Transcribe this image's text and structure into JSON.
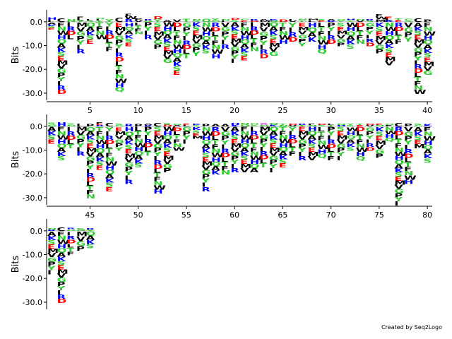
{
  "credit": "Created by Seq2Logo",
  "chart_data": {
    "type": "sequence-logo",
    "ylabel": "Bits",
    "ylim": [
      -33,
      5
    ],
    "yticks": [
      {
        "value": 0,
        "label": "0.0"
      },
      {
        "value": -10,
        "label": "-10.0"
      },
      {
        "value": -20,
        "label": "-20.0"
      },
      {
        "value": -30,
        "label": "-30.0"
      }
    ],
    "grid": false,
    "residue_colors": {
      "hydrophobic": "#000000",
      "polar": "#33cc33",
      "acidic": "#ff0000",
      "basic": "#0000ff",
      "other": "#cc00cc"
    },
    "rows": [
      {
        "start": 1,
        "end": 40,
        "xticks": [
          5,
          10,
          15,
          20,
          25,
          30,
          35,
          40
        ],
        "positions": [
          {
            "top": "HI",
            "pos": 1.8,
            "neg": -3
          },
          {
            "top": "C",
            "pos": 1.6,
            "neg": -30
          },
          {
            "top": "N",
            "pos": 1.2,
            "neg": -7
          },
          {
            "top": "FLY",
            "pos": 2.2,
            "neg": -13
          },
          {
            "top": "LS",
            "pos": 0.8,
            "neg": -9
          },
          {
            "top": "QIT",
            "pos": 0.9,
            "neg": -7
          },
          {
            "top": "Y",
            "pos": 1.1,
            "neg": -12
          },
          {
            "top": "C",
            "pos": 1.8,
            "neg": -29
          },
          {
            "top": "FWR",
            "pos": 3.3,
            "neg": -10
          },
          {
            "top": "PV",
            "pos": 1.4,
            "neg": -5
          },
          {
            "top": "RG",
            "pos": 1.2,
            "neg": -7
          },
          {
            "top": "DY",
            "pos": 2.2,
            "neg": -11
          },
          {
            "top": "A",
            "pos": 0.8,
            "neg": -17
          },
          {
            "top": "V",
            "pos": 1.0,
            "neg": -22
          },
          {
            "top": "T",
            "pos": 1.4,
            "neg": -15
          },
          {
            "top": "NS",
            "pos": 1.2,
            "neg": -14
          },
          {
            "top": "Q",
            "pos": 1.3,
            "neg": -13
          },
          {
            "top": "YG",
            "pos": 1.4,
            "neg": -15
          },
          {
            "top": "NI",
            "pos": 1.2,
            "neg": -11
          },
          {
            "top": "DS",
            "pos": 1.6,
            "neg": -17
          },
          {
            "top": "GE",
            "pos": 1.3,
            "neg": -16
          },
          {
            "top": "RD",
            "pos": 1.2,
            "neg": -12
          },
          {
            "top": "AM",
            "pos": 1.2,
            "neg": -15
          },
          {
            "top": "KN",
            "pos": 1.0,
            "neg": -14
          },
          {
            "top": "D",
            "pos": 0.9,
            "neg": -9
          },
          {
            "top": "IV",
            "pos": 1.0,
            "neg": -8
          },
          {
            "top": "NT",
            "pos": 1.3,
            "neg": -10
          },
          {
            "top": "ML",
            "pos": 1.3,
            "neg": -8
          },
          {
            "top": "SE",
            "pos": 1.1,
            "neg": -13
          },
          {
            "top": "AR",
            "pos": 0.9,
            "neg": -9
          },
          {
            "top": "QY",
            "pos": 1.0,
            "neg": -10
          },
          {
            "top": "HT",
            "pos": 1.3,
            "neg": -11
          },
          {
            "top": "NV",
            "pos": 1.0,
            "neg": -9
          },
          {
            "top": "RS",
            "pos": 1.1,
            "neg": -10
          },
          {
            "top": "FWM",
            "pos": 3.2,
            "neg": -13
          },
          {
            "top": "ELK",
            "pos": 2.2,
            "neg": -18
          },
          {
            "top": "TE",
            "pos": 1.5,
            "neg": -9
          },
          {
            "top": "GS",
            "pos": 1.3,
            "neg": -8
          },
          {
            "top": "C",
            "pos": 1.6,
            "neg": -30
          },
          {
            "top": "P",
            "pos": 1.0,
            "neg": -22
          }
        ]
      },
      {
        "start": 41,
        "end": 80,
        "xticks": [
          45,
          50,
          55,
          60,
          65,
          70,
          75,
          80
        ],
        "positions": [
          {
            "top": "SG",
            "pos": 1.6,
            "neg": -7
          },
          {
            "top": "H",
            "pos": 1.7,
            "neg": -14
          },
          {
            "top": "SN",
            "pos": 1.3,
            "neg": -9
          },
          {
            "top": "IL",
            "pos": 1.0,
            "neg": -12
          },
          {
            "top": "P",
            "pos": 1.0,
            "neg": -30
          },
          {
            "top": "FER",
            "pos": 1.8,
            "neg": -18
          },
          {
            "top": "C",
            "pos": 1.6,
            "neg": -27
          },
          {
            "top": "SG",
            "pos": 1.2,
            "neg": -10
          },
          {
            "top": "R",
            "pos": 1.0,
            "neg": -24
          },
          {
            "top": "P",
            "pos": 1.0,
            "neg": -17
          },
          {
            "top": "AR",
            "pos": 1.2,
            "neg": -12
          },
          {
            "top": "C",
            "pos": 1.6,
            "neg": -28
          },
          {
            "top": "SD",
            "pos": 1.4,
            "neg": -19
          },
          {
            "top": "GA",
            "pos": 1.2,
            "neg": -10
          },
          {
            "top": "EL",
            "pos": 1.0,
            "neg": -7
          },
          {
            "top": "KS",
            "pos": 1.0,
            "neg": -5
          },
          {
            "top": "P",
            "pos": 1.0,
            "neg": -27
          },
          {
            "top": "A",
            "pos": 1.0,
            "neg": -20
          },
          {
            "top": "A",
            "pos": 1.0,
            "neg": -20
          },
          {
            "top": "HK",
            "pos": 1.5,
            "neg": -19
          },
          {
            "top": "NQ",
            "pos": 1.4,
            "neg": -19
          },
          {
            "top": "NS",
            "pos": 1.3,
            "neg": -19
          },
          {
            "top": "XN",
            "pos": 1.3,
            "neg": -17
          },
          {
            "top": "QK",
            "pos": 1.4,
            "neg": -19
          },
          {
            "top": "TN",
            "pos": 1.2,
            "neg": -17
          },
          {
            "top": "DV",
            "pos": 0.9,
            "neg": -12
          },
          {
            "top": "RT",
            "pos": 1.0,
            "neg": -14
          },
          {
            "top": "FN",
            "pos": 1.0,
            "neg": -14
          },
          {
            "top": "DS",
            "pos": 1.1,
            "neg": -13
          },
          {
            "top": "LT",
            "pos": 1.0,
            "neg": -14
          },
          {
            "top": "NH",
            "pos": 1.0,
            "neg": -14
          },
          {
            "top": "YS",
            "pos": 0.9,
            "neg": -10
          },
          {
            "top": "TE",
            "pos": 1.0,
            "neg": -14
          },
          {
            "top": "DV",
            "pos": 1.0,
            "neg": -10
          },
          {
            "top": "EN",
            "pos": 1.0,
            "neg": -13
          },
          {
            "top": "QF",
            "pos": 1.2,
            "neg": -6
          },
          {
            "top": "C",
            "pos": 1.6,
            "neg": -33
          },
          {
            "top": "P",
            "pos": 1.2,
            "neg": -24
          },
          {
            "top": "SG",
            "pos": 1.2,
            "neg": -9
          },
          {
            "top": "K",
            "pos": 1.0,
            "neg": -15
          }
        ]
      },
      {
        "start": 81,
        "end": 85,
        "xticks": [],
        "positions": [
          {
            "top": "NR",
            "pos": 0.9,
            "neg": -18
          },
          {
            "top": "C",
            "pos": 1.6,
            "neg": -30
          },
          {
            "top": "RG",
            "pos": 1.3,
            "neg": -10
          },
          {
            "top": "SN",
            "pos": 1.2,
            "neg": -8
          },
          {
            "top": "RY",
            "pos": 1.1,
            "neg": -7
          }
        ]
      }
    ]
  }
}
